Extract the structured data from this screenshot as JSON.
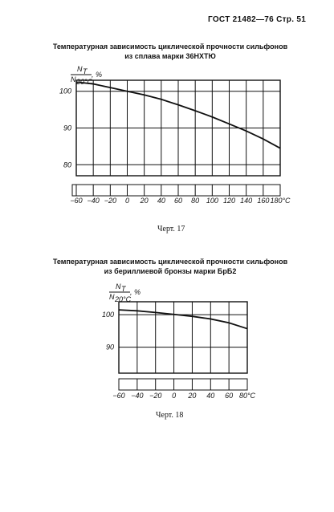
{
  "header": {
    "text": "ГОСТ 21482—76 Стр. 51"
  },
  "figure1": {
    "title_line1": "Температурная зависимость циклической прочности сильфонов",
    "title_line2": "из сплава марки 36НХТЮ",
    "caption": "Черт. 17"
  },
  "figure2": {
    "title_line1": "Температурная зависимость циклической прочности сильфонов",
    "title_line2": "из бериллиевой бронзы марки БрБ2",
    "caption": "Черт. 18"
  },
  "chart_data": [
    {
      "type": "line",
      "ylabel_num": "N",
      "ylabel_num_sub": "T",
      "ylabel_den": "N",
      "ylabel_den_sub": "20°C",
      "ylabel_unit": ", %",
      "x_ticks": [
        "−60",
        "−40",
        "−20",
        "0",
        "20",
        "40",
        "60",
        "80",
        "100",
        "120",
        "140",
        "160",
        "180°C"
      ],
      "y_ticks": [
        "100",
        "90",
        "80"
      ],
      "xlim": [
        -60,
        180
      ],
      "ylim": [
        77,
        103
      ],
      "grid": true,
      "series": [
        {
          "x": [
            -60,
            -40,
            -20,
            0,
            20,
            40,
            60,
            80,
            100,
            120,
            140,
            160,
            180
          ],
          "y": [
            102.5,
            102,
            101,
            100,
            99,
            97.8,
            96.3,
            94.7,
            93,
            91.1,
            89.2,
            87,
            84.5
          ]
        }
      ]
    },
    {
      "type": "line",
      "ylabel_num": "N",
      "ylabel_num_sub": "T",
      "ylabel_den": "N",
      "ylabel_den_sub": "20°C",
      "ylabel_unit": ", %",
      "x_ticks": [
        "−60",
        "−40",
        "−20",
        "0",
        "20",
        "40",
        "60",
        "80°C"
      ],
      "y_ticks": [
        "100",
        "90"
      ],
      "xlim": [
        -60,
        80
      ],
      "ylim": [
        82,
        104
      ],
      "grid": true,
      "series": [
        {
          "x": [
            -60,
            -40,
            -20,
            0,
            20,
            40,
            60,
            80
          ],
          "y": [
            101.5,
            101.2,
            100.7,
            100.1,
            99.5,
            98.7,
            97.5,
            95.7
          ]
        }
      ]
    }
  ]
}
